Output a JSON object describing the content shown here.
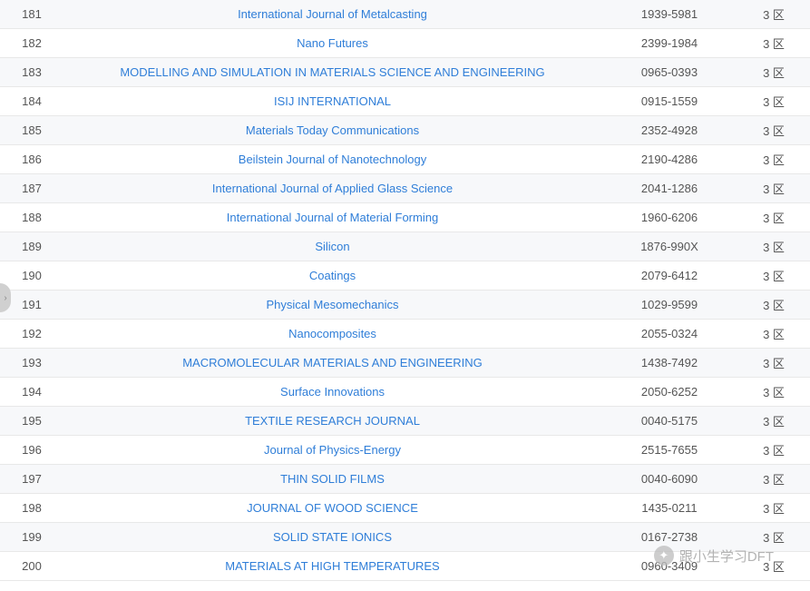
{
  "zone_label": "区",
  "watermark_text": "跟小生学习DFT",
  "rows": [
    {
      "num": "181",
      "title": "International Journal of Metalcasting",
      "issn": "1939-5981",
      "zone": "3"
    },
    {
      "num": "182",
      "title": "Nano Futures",
      "issn": "2399-1984",
      "zone": "3"
    },
    {
      "num": "183",
      "title": "MODELLING AND SIMULATION IN MATERIALS SCIENCE AND ENGINEERING",
      "issn": "0965-0393",
      "zone": "3"
    },
    {
      "num": "184",
      "title": "ISIJ INTERNATIONAL",
      "issn": "0915-1559",
      "zone": "3"
    },
    {
      "num": "185",
      "title": "Materials Today Communications",
      "issn": "2352-4928",
      "zone": "3"
    },
    {
      "num": "186",
      "title": "Beilstein Journal of Nanotechnology",
      "issn": "2190-4286",
      "zone": "3"
    },
    {
      "num": "187",
      "title": "International Journal of Applied Glass Science",
      "issn": "2041-1286",
      "zone": "3"
    },
    {
      "num": "188",
      "title": "International Journal of Material Forming",
      "issn": "1960-6206",
      "zone": "3"
    },
    {
      "num": "189",
      "title": "Silicon",
      "issn": "1876-990X",
      "zone": "3"
    },
    {
      "num": "190",
      "title": "Coatings",
      "issn": "2079-6412",
      "zone": "3"
    },
    {
      "num": "191",
      "title": "Physical Mesomechanics",
      "issn": "1029-9599",
      "zone": "3"
    },
    {
      "num": "192",
      "title": "Nanocomposites",
      "issn": "2055-0324",
      "zone": "3"
    },
    {
      "num": "193",
      "title": "MACROMOLECULAR MATERIALS AND ENGINEERING",
      "issn": "1438-7492",
      "zone": "3"
    },
    {
      "num": "194",
      "title": "Surface Innovations",
      "issn": "2050-6252",
      "zone": "3"
    },
    {
      "num": "195",
      "title": "TEXTILE RESEARCH JOURNAL",
      "issn": "0040-5175",
      "zone": "3"
    },
    {
      "num": "196",
      "title": "Journal of Physics-Energy",
      "issn": "2515-7655",
      "zone": "3"
    },
    {
      "num": "197",
      "title": "THIN SOLID FILMS",
      "issn": "0040-6090",
      "zone": "3"
    },
    {
      "num": "198",
      "title": "JOURNAL OF WOOD SCIENCE",
      "issn": "1435-0211",
      "zone": "3"
    },
    {
      "num": "199",
      "title": "SOLID STATE IONICS",
      "issn": "0167-2738",
      "zone": "3"
    },
    {
      "num": "200",
      "title": "MATERIALS AT HIGH TEMPERATURES",
      "issn": "0960-3409",
      "zone": "3"
    }
  ]
}
